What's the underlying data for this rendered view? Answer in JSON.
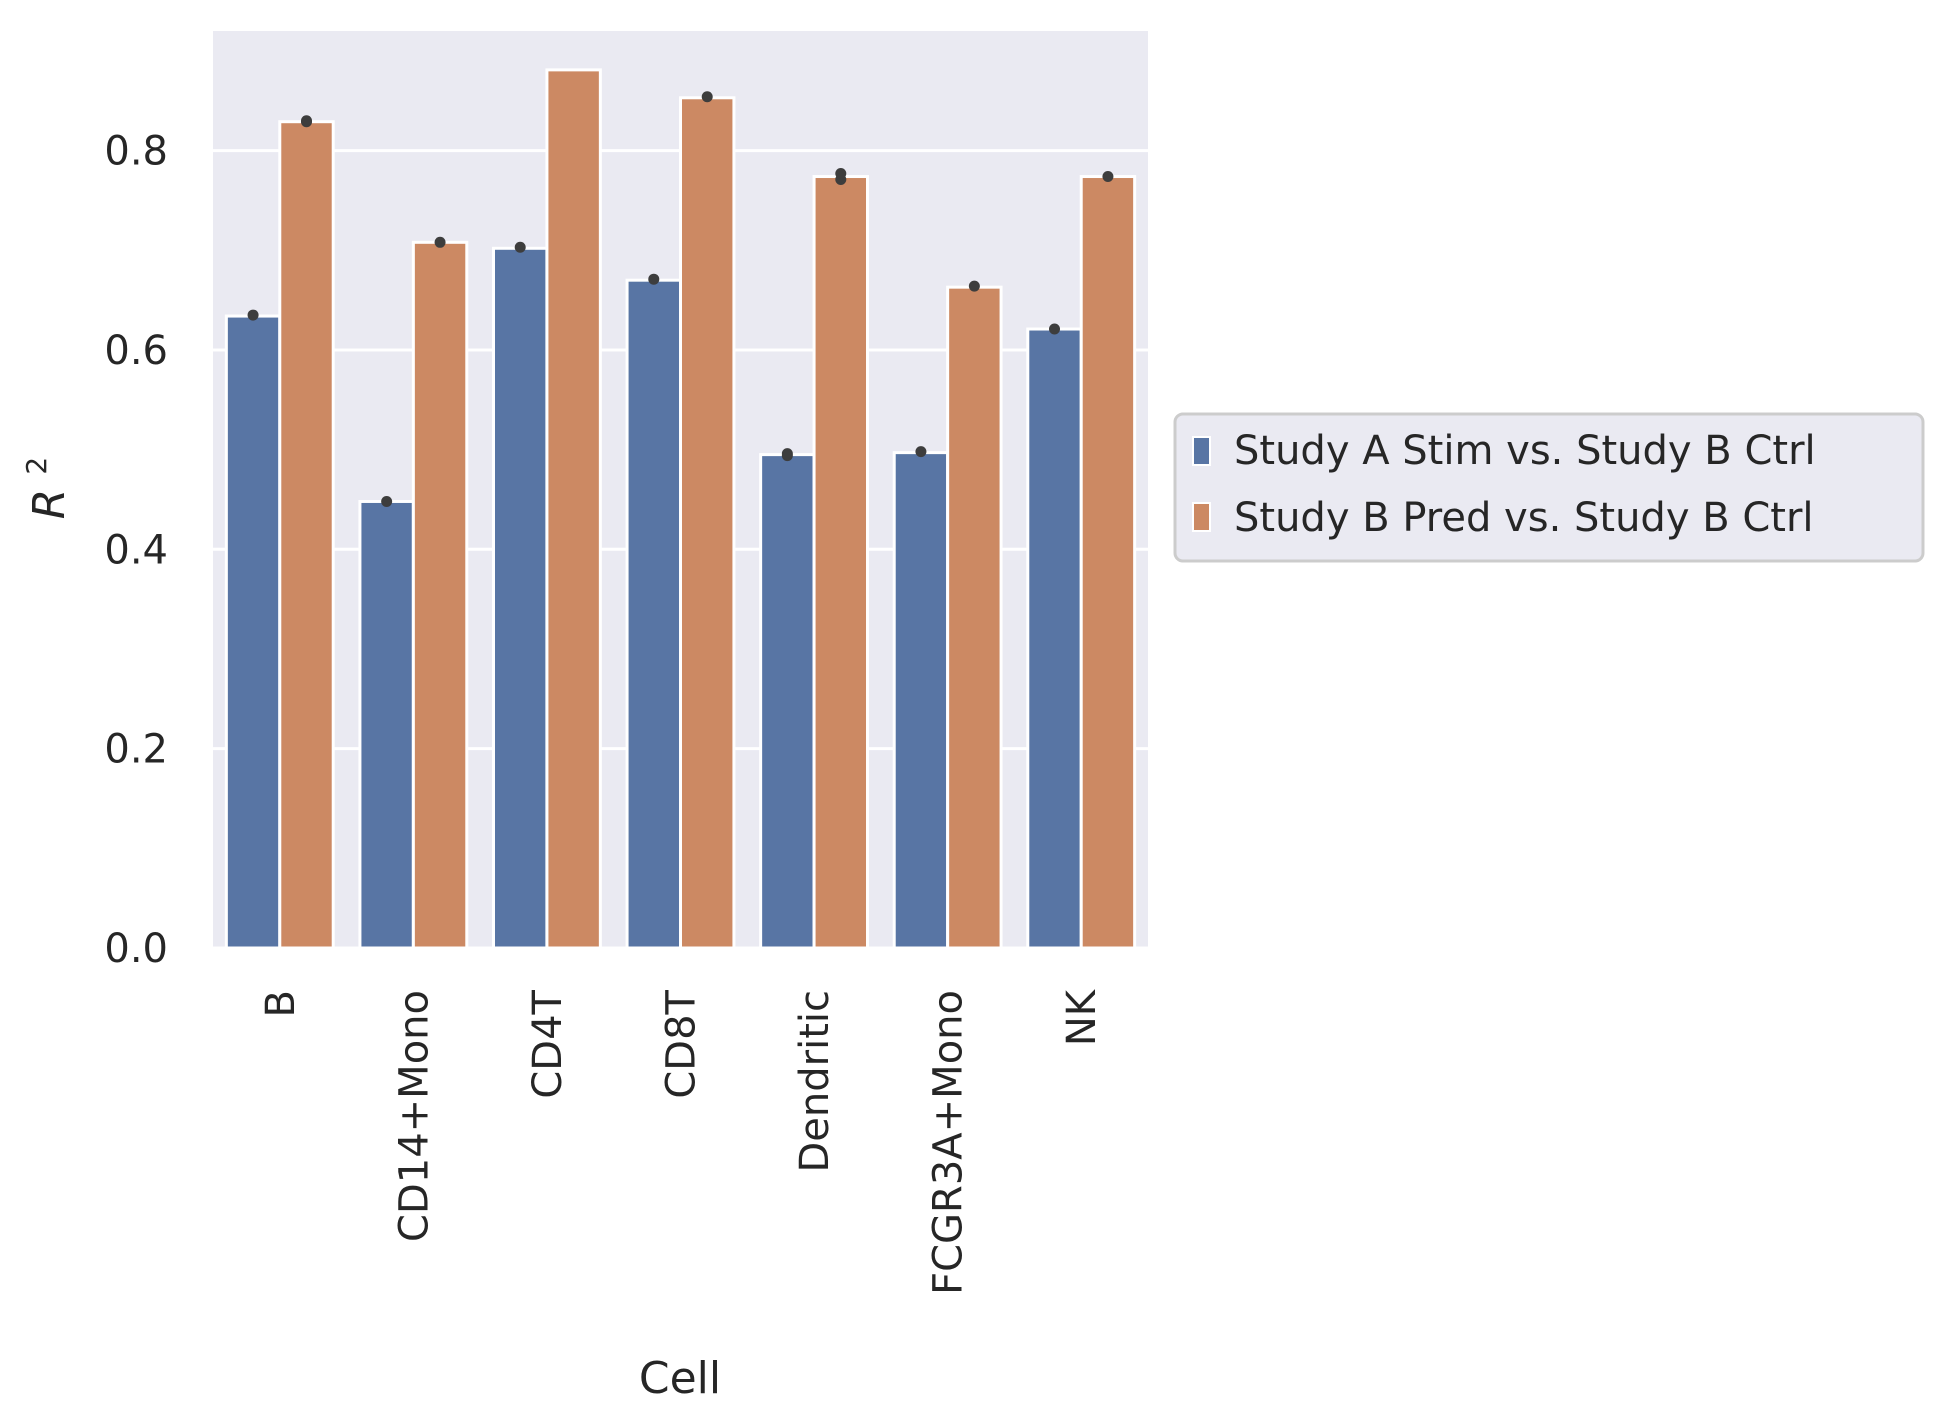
{
  "chart_data": {
    "type": "bar",
    "xlabel": "Cell",
    "ylabel": "R",
    "ylabel_superscript": "2",
    "categories": [
      "B",
      "CD14+Mono",
      "CD4T",
      "CD8T",
      "Dendritic",
      "FCGR3A+Mono",
      "NK"
    ],
    "series": [
      {
        "name": "Study A Stim vs. Study B Ctrl",
        "color": "#5875a4",
        "values": [
          0.634,
          0.448,
          0.702,
          0.67,
          0.495,
          0.497,
          0.621
        ],
        "marker_points": [
          [
            0.635
          ],
          [
            0.448
          ],
          [
            0.703
          ],
          [
            0.671
          ],
          [
            0.494,
            0.496
          ],
          [
            0.498
          ],
          [
            0.621
          ]
        ]
      },
      {
        "name": "Study B Pred vs. Study B Ctrl",
        "color": "#cc8963",
        "values": [
          0.829,
          0.708,
          0.881,
          0.853,
          0.774,
          0.663,
          0.774
        ],
        "marker_points": [
          [
            0.829,
            0.83
          ],
          [
            0.708
          ],
          [],
          [
            0.854
          ],
          [
            0.771,
            0.777
          ],
          [
            0.664
          ],
          [
            0.774
          ]
        ]
      }
    ],
    "ylim": [
      0,
      0.92
    ],
    "yticks": [
      "0.0",
      "0.2",
      "0.4",
      "0.6",
      "0.8"
    ],
    "ytick_values": [
      0,
      0.2,
      0.4,
      0.6,
      0.8
    ],
    "grid": true,
    "legend_position": "outside right"
  }
}
